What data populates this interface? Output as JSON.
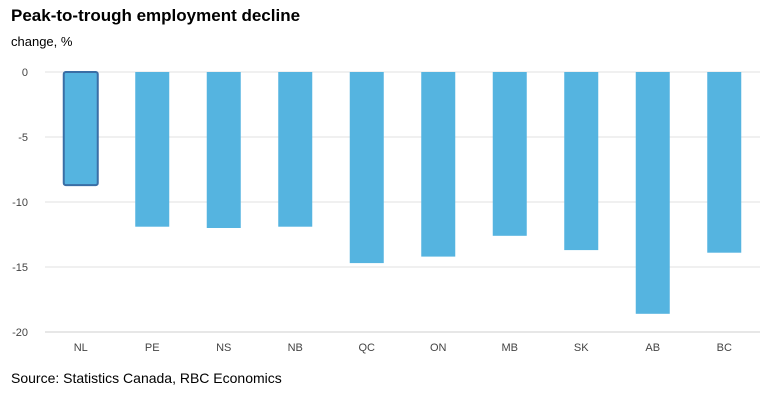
{
  "title": "Peak-to-trough employment decline",
  "subtitle": "change, %",
  "source": "Source: Statistics Canada, RBC Economics",
  "colors": {
    "bar": "#55b4e0",
    "highlight_outline": "#3a6ea5",
    "grid": "#e2e2e2"
  },
  "chart_data": {
    "type": "bar",
    "categories": [
      "NL",
      "PE",
      "NS",
      "NB",
      "QC",
      "ON",
      "MB",
      "SK",
      "AB",
      "BC"
    ],
    "values": [
      -8.7,
      -11.9,
      -12.0,
      -11.9,
      -14.7,
      -14.2,
      -12.6,
      -13.7,
      -18.6,
      -13.9
    ],
    "highlighted": [
      "NL"
    ],
    "ylim": [
      -20,
      0
    ],
    "yticks": [
      0,
      -5,
      -10,
      -15,
      -20
    ],
    "ytick_labels": [
      "0",
      "-5",
      "-10",
      "-15",
      "-20"
    ],
    "grid": true
  }
}
